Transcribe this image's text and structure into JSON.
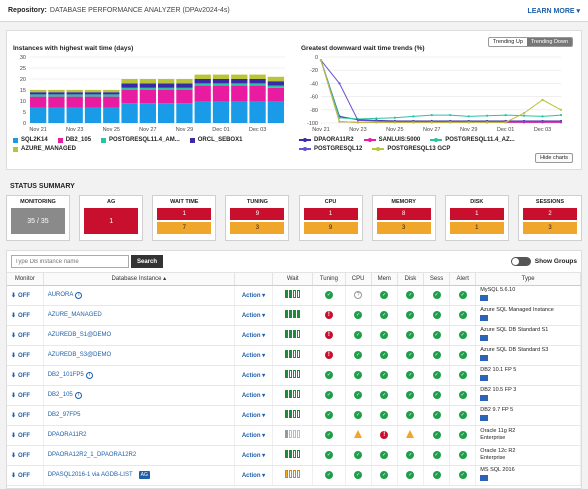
{
  "repository": {
    "label": "Repository:",
    "name": "DATABASE PERFORMANCE ANALYZER (DPAv2024-4s)",
    "learn_more": "LEARN MORE ▾"
  },
  "charts": {
    "left_title": "Instances with highest wait time (days)",
    "right_title": "Greatest downward wait time trends (%)",
    "toggle": [
      "Trending Up",
      "Trending Down"
    ],
    "hide_charts": "Hide charts",
    "left_legend": [
      {
        "name": "SQL2K14",
        "color": "#1a9be8"
      },
      {
        "name": "DB2_105",
        "color": "#e81ca0"
      },
      {
        "name": "POSTGRESQL11.4_AM...",
        "color": "#27c4a0"
      },
      {
        "name": "ORCL_SEBOX1",
        "color": "#3b2aa8"
      },
      {
        "name": "AZURE_MANAGED",
        "color": "#b8c43a"
      }
    ],
    "right_legend": [
      {
        "name": "DPAORA11R2",
        "color": "#3b2aa8"
      },
      {
        "name": "SANLUIS:5000",
        "color": "#e81ca0"
      },
      {
        "name": "POSTGRESQL11.4_AZ...",
        "color": "#27c4a0"
      },
      {
        "name": "POSTGRESQL12",
        "color": "#6b4fd0"
      },
      {
        "name": "POSTGRESQL13 GCP",
        "color": "#b8c43a"
      }
    ]
  },
  "chart_data": [
    {
      "type": "bar",
      "title": "Instances with highest wait time (days)",
      "categories": [
        "Nov 21",
        "",
        "Nov 23",
        "",
        "Nov 25",
        "",
        "Nov 27",
        "",
        "Nov 29",
        "",
        "Dec 01",
        "",
        "Dec 03",
        ""
      ],
      "ylim": [
        0,
        30
      ],
      "yticks": [
        0,
        5,
        10,
        15,
        20,
        25,
        30
      ],
      "series": [
        {
          "name": "SQL2K14",
          "color": "#1a9be8",
          "values": [
            7,
            7,
            7,
            7,
            7,
            9,
            9,
            9,
            9,
            10,
            10,
            10,
            10,
            10
          ]
        },
        {
          "name": "DB2_105",
          "color": "#e81ca0",
          "values": [
            5,
            5,
            5,
            5,
            5,
            6,
            6,
            6,
            6,
            7,
            7,
            7,
            7,
            6
          ]
        },
        {
          "name": "POSTGRESQL11.4_AM...",
          "color": "#27c4a0",
          "values": [
            1,
            1,
            1,
            1,
            1,
            1,
            1,
            1,
            1,
            1,
            1,
            1,
            1,
            1
          ]
        },
        {
          "name": "ORCL_SEBOX1",
          "color": "#3b2aa8",
          "values": [
            1,
            1,
            1,
            1,
            1,
            2,
            2,
            2,
            2,
            2,
            2,
            2,
            2,
            2
          ]
        },
        {
          "name": "AZURE_MANAGED",
          "color": "#b8c43a",
          "values": [
            1,
            1,
            1,
            1,
            1,
            2,
            2,
            2,
            2,
            2,
            2,
            2,
            2,
            2
          ]
        }
      ]
    },
    {
      "type": "line",
      "title": "Greatest downward wait time trends (%)",
      "x": [
        "Nov 21",
        "",
        "Nov 23",
        "",
        "Nov 25",
        "",
        "Nov 27",
        "",
        "Nov 29",
        "",
        "Dec 01",
        "",
        "Dec 03",
        ""
      ],
      "ylim": [
        -100,
        0
      ],
      "yticks": [
        0,
        -20,
        -40,
        -60,
        -80,
        -100
      ],
      "series": [
        {
          "name": "DPAORA11R2",
          "color": "#3b2aa8",
          "values": [
            -5,
            -90,
            -95,
            -96,
            -97,
            -97,
            -97,
            -97,
            -97,
            -97,
            -97,
            -97,
            -97,
            -97
          ]
        },
        {
          "name": "SANLUIS:5000",
          "color": "#e81ca0",
          "values": [
            -5,
            -98,
            -99,
            -99,
            -99,
            -99,
            -99,
            -99,
            -99,
            -99,
            -99,
            -99,
            -99,
            -99
          ]
        },
        {
          "name": "POSTGRESQL11.4_AZ...",
          "color": "#27c4a0",
          "values": [
            -5,
            -92,
            -94,
            -93,
            -92,
            -90,
            -88,
            -88,
            -90,
            -89,
            -88,
            -89,
            -90,
            -88
          ]
        },
        {
          "name": "POSTGRESQL12",
          "color": "#6b4fd0",
          "values": [
            -5,
            -40,
            -96,
            -97,
            -98,
            -98,
            -98,
            -98,
            -98,
            -98,
            -98,
            -98,
            -98,
            -98
          ]
        },
        {
          "name": "POSTGRESQL13 GCP",
          "color": "#b8c43a",
          "values": [
            -5,
            -98,
            -99,
            -99,
            -99,
            -99,
            -99,
            -99,
            -99,
            -99,
            -99,
            -85,
            -65,
            -80
          ]
        }
      ]
    }
  ],
  "status_summary": {
    "title": "STATUS SUMMARY",
    "tiles": [
      {
        "label": "MONITORING",
        "top": "35 / 35",
        "bottom": ""
      },
      {
        "label": "AG",
        "top": "1",
        "bottom": ""
      },
      {
        "label": "WAIT TIME",
        "top": "1",
        "bottom": "7"
      },
      {
        "label": "TUNING",
        "top": "9",
        "bottom": "3"
      },
      {
        "label": "CPU",
        "top": "1",
        "bottom": "9"
      },
      {
        "label": "MEMORY",
        "top": "8",
        "bottom": "3"
      },
      {
        "label": "DISK",
        "top": "1",
        "bottom": "1"
      },
      {
        "label": "SESSIONS",
        "top": "2",
        "bottom": "3"
      }
    ]
  },
  "table": {
    "search_placeholder": "Type DB instance name",
    "search_button": "Search",
    "show_groups": "Show Groups",
    "columns": [
      "Monitor",
      "Database Instance ▴",
      "",
      "Wait",
      "Tuning",
      "CPU",
      "Mem",
      "Disk",
      "Sess",
      "Alert",
      "Type"
    ],
    "off_label": "OFF",
    "action_label": "Action ▾",
    "rows": [
      {
        "name": "AURORA",
        "info": true,
        "ag": "",
        "wait": [
          "f",
          "f",
          "e",
          "e"
        ],
        "tuning": "ok",
        "cpu": "unk",
        "mem": "ok",
        "disk": "ok",
        "sess": "ok",
        "alert": "ok",
        "type1": "MySQL 5.6.10",
        "type2": ""
      },
      {
        "name": "AZURE_MANAGED",
        "info": false,
        "ag": "",
        "wait": [
          "f",
          "f",
          "f",
          "f"
        ],
        "tuning": "err",
        "cpu": "ok",
        "mem": "ok",
        "disk": "ok",
        "sess": "ok",
        "alert": "ok",
        "type1": "Azure SQL Managed Instance",
        "type2": ""
      },
      {
        "name": "AZUREDB_S1@DEMO",
        "info": false,
        "ag": "",
        "wait": [
          "f",
          "f",
          "f",
          "e"
        ],
        "tuning": "err",
        "cpu": "ok",
        "mem": "ok",
        "disk": "ok",
        "sess": "ok",
        "alert": "ok",
        "type1": "Azure SQL DB Standard S1",
        "type2": ""
      },
      {
        "name": "AZUREDB_S3@DEMO",
        "info": false,
        "ag": "",
        "wait": [
          "f",
          "f",
          "e",
          "e"
        ],
        "tuning": "err",
        "cpu": "ok",
        "mem": "ok",
        "disk": "ok",
        "sess": "ok",
        "alert": "ok",
        "type1": "Azure SQL DB Standard S3",
        "type2": ""
      },
      {
        "name": "DB2_101FP5",
        "info": true,
        "ag": "",
        "wait": [
          "f",
          "e",
          "e",
          "e"
        ],
        "tuning": "ok",
        "cpu": "ok",
        "mem": "ok",
        "disk": "ok",
        "sess": "ok",
        "alert": "ok",
        "type1": "DB2 10.1 FP 5",
        "type2": ""
      },
      {
        "name": "DB2_105",
        "info": true,
        "ag": "",
        "wait": [
          "f",
          "f",
          "e",
          "e"
        ],
        "tuning": "ok",
        "cpu": "ok",
        "mem": "ok",
        "disk": "ok",
        "sess": "ok",
        "alert": "ok",
        "type1": "DB2 10.5 FP 3",
        "type2": ""
      },
      {
        "name": "DB2_97FP5",
        "info": false,
        "ag": "",
        "wait": [
          "f",
          "f",
          "e",
          "e"
        ],
        "tuning": "ok",
        "cpu": "ok",
        "mem": "ok",
        "disk": "ok",
        "sess": "ok",
        "alert": "ok",
        "type1": "DB2 9.7 FP 5",
        "type2": ""
      },
      {
        "name": "DPAORA11R2",
        "info": false,
        "ag": "",
        "wait": [
          "fg",
          "eg",
          "eg",
          "eg"
        ],
        "tuning": "ok",
        "cpu": "warn",
        "mem": "err",
        "disk": "warn",
        "sess": "ok",
        "alert": "ok",
        "type1": "Oracle 11g R2",
        "type2": "Enterprise"
      },
      {
        "name": "DPAORA12R2_1_DPAORA12R2",
        "info": false,
        "ag": "",
        "wait": [
          "f",
          "f",
          "e",
          "e"
        ],
        "tuning": "ok",
        "cpu": "ok",
        "mem": "ok",
        "disk": "ok",
        "sess": "ok",
        "alert": "ok",
        "type1": "Oracle 12c R2",
        "type2": "Enterprise"
      },
      {
        "name": "DPASQL2016-1 via AGDB-LIST",
        "info": false,
        "ag": "AG",
        "wait": [
          "fo",
          "eo",
          "eo",
          "eo"
        ],
        "tuning": "ok",
        "cpu": "ok",
        "mem": "ok",
        "disk": "ok",
        "sess": "ok",
        "alert": "ok",
        "type1": "MS SQL 2016",
        "type2": ""
      }
    ]
  }
}
